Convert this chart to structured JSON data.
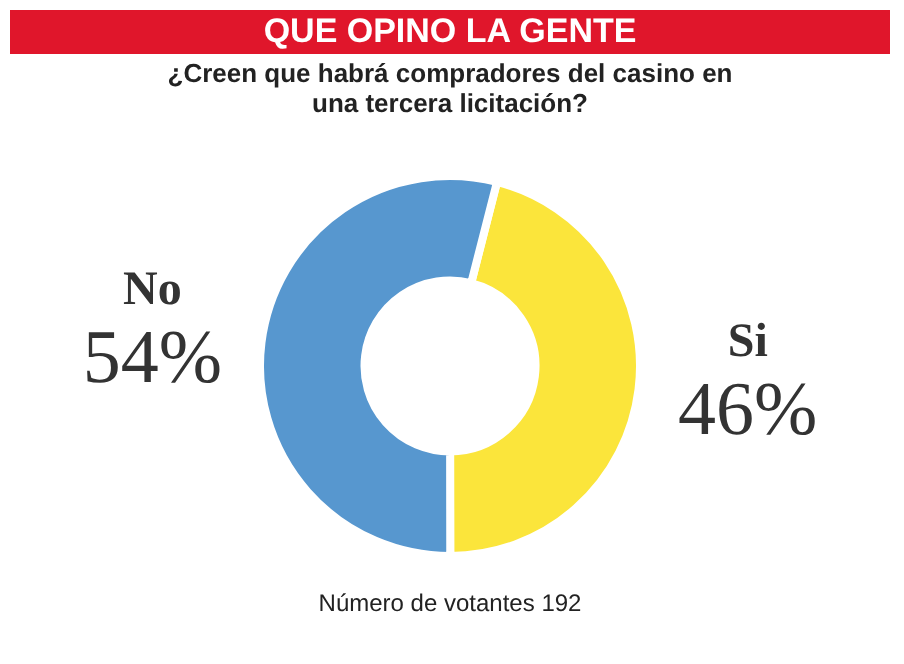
{
  "chart_data": {
    "type": "donut",
    "title": "QUE OPINO LA GENTE",
    "subtitle": "¿Creen que habrá compradores del casino en una tercera licitación?",
    "categories": [
      "Si",
      "No"
    ],
    "values": [
      46,
      54
    ],
    "colors": [
      "#fbe53b",
      "#5797cf"
    ],
    "value_labels": [
      "46%",
      "54%"
    ],
    "annotations": [
      "Número de votantes 192"
    ]
  }
}
